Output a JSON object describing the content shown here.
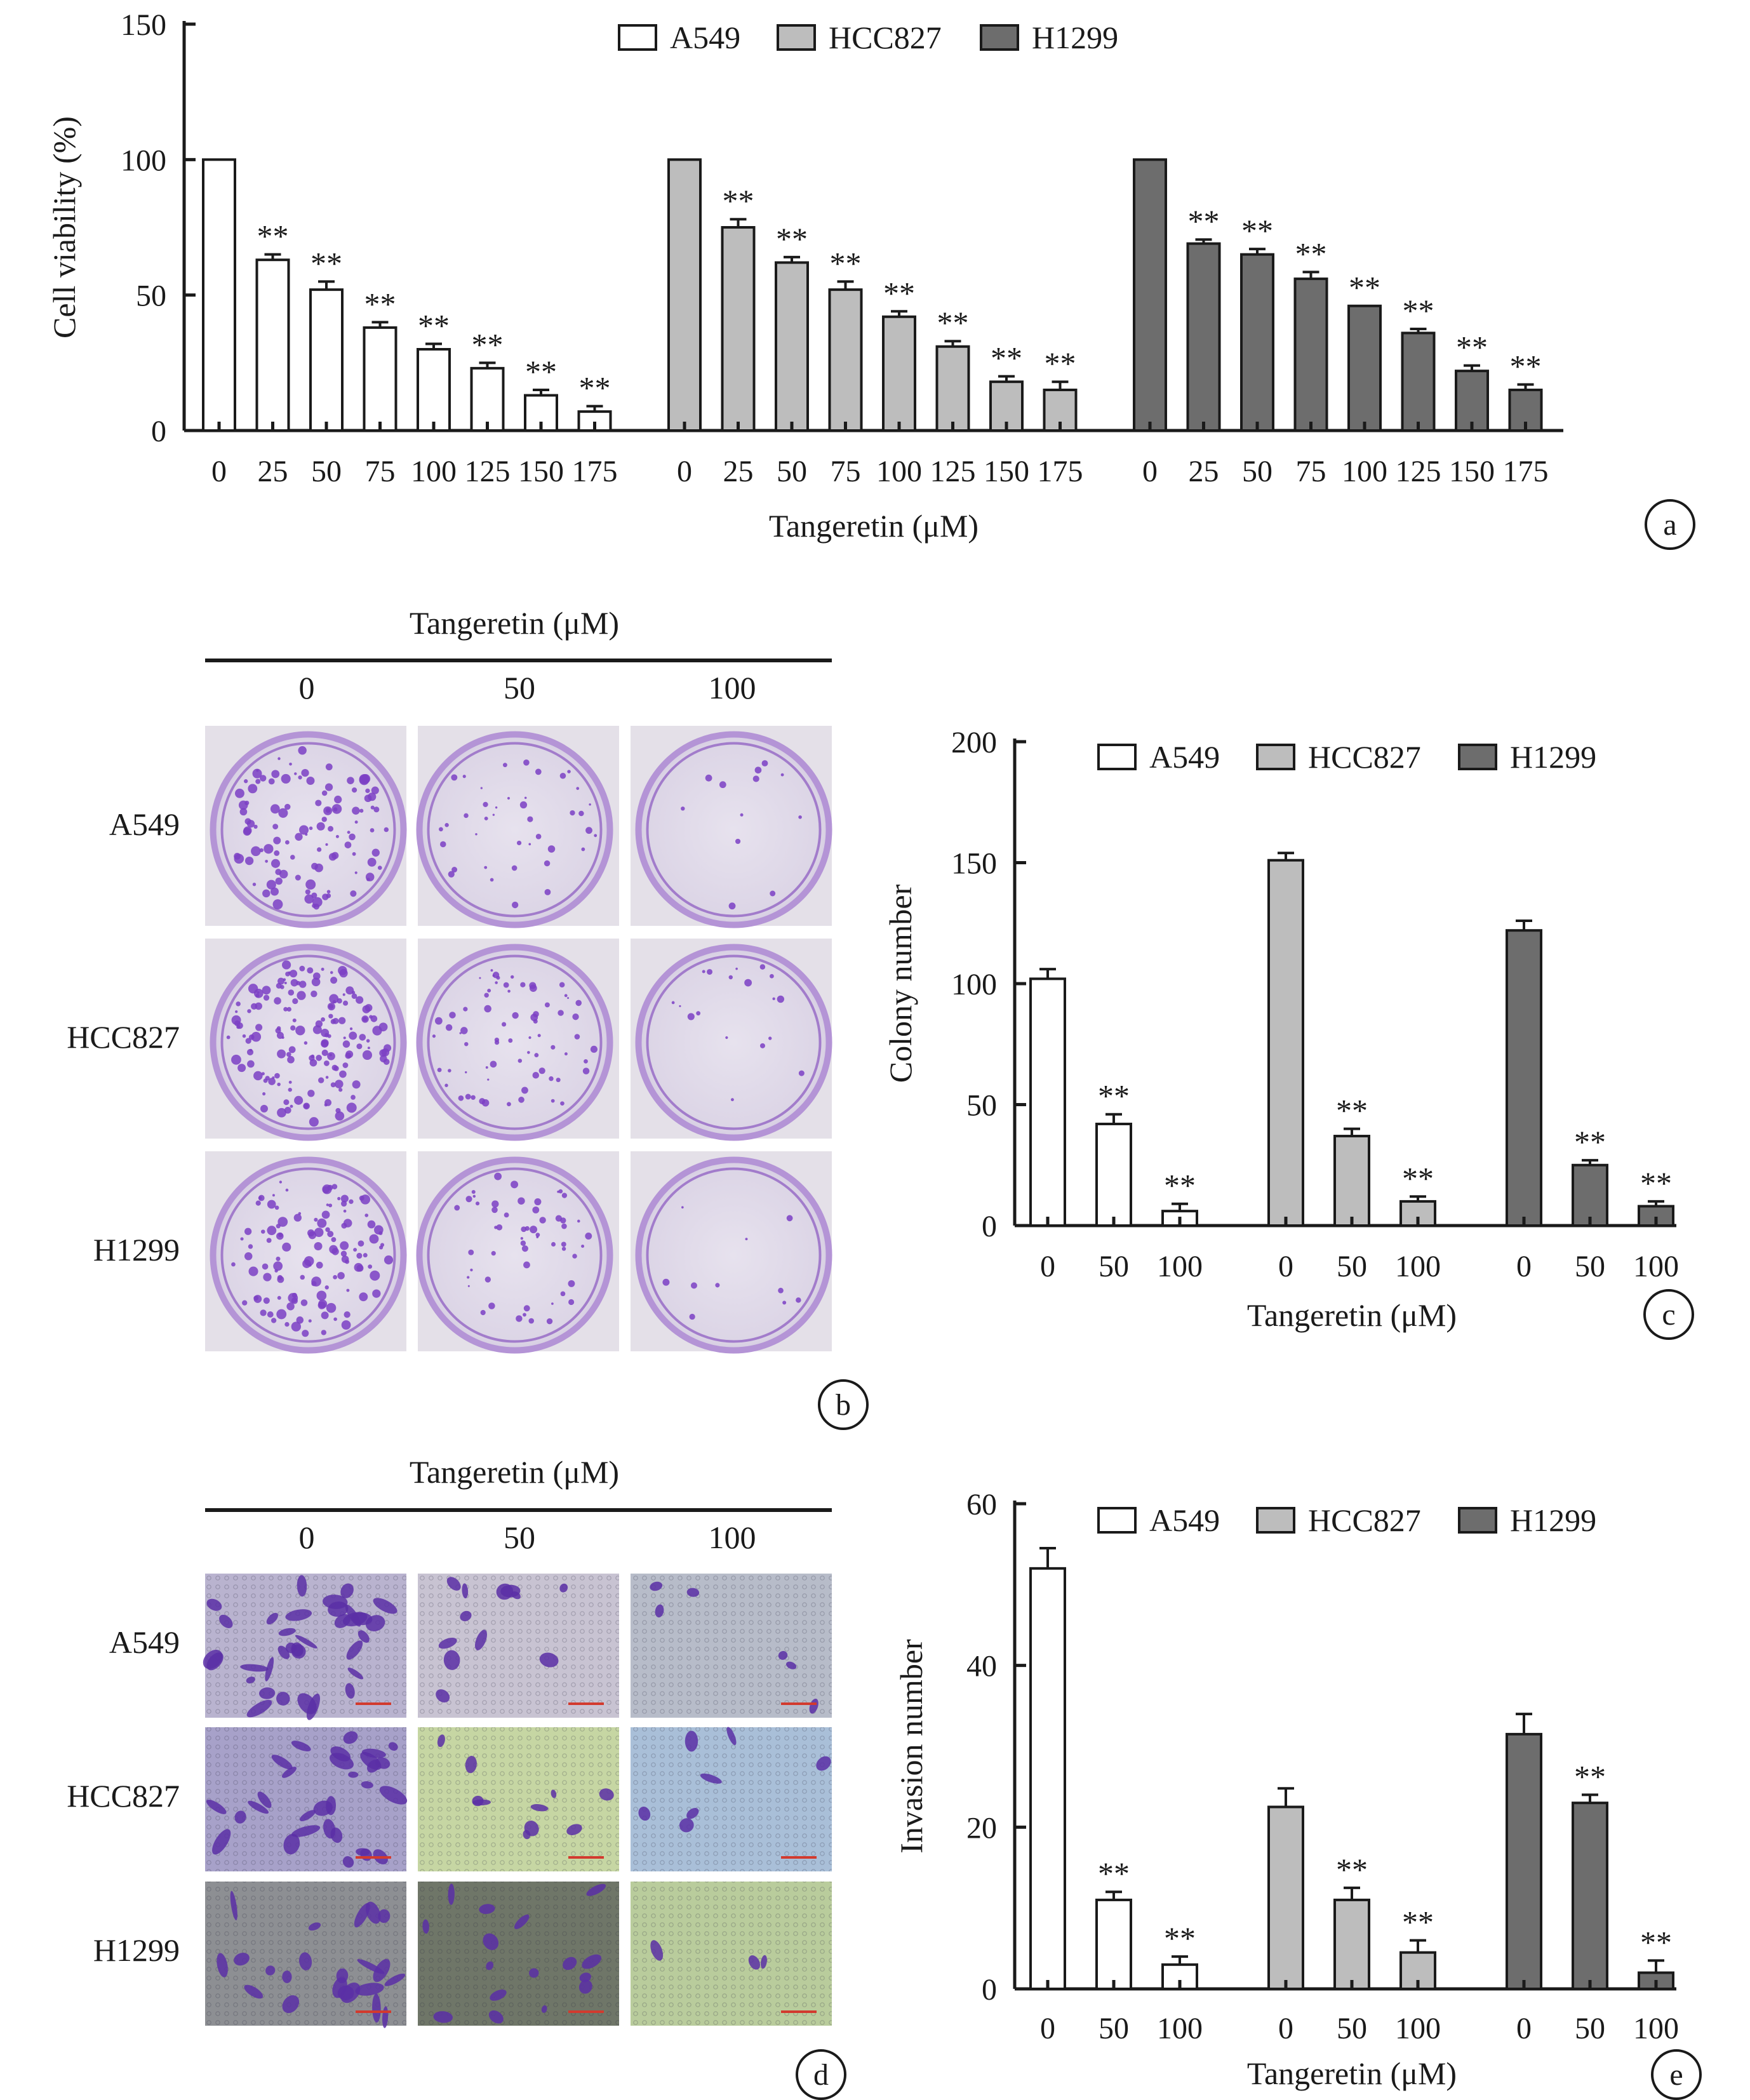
{
  "colors": {
    "A549": "#ffffff",
    "HCC827": "#bdbdbd",
    "H1299": "#6d6d6d"
  },
  "chart_data": [
    {
      "panel": "a",
      "type": "bar",
      "title": "",
      "xlabel": "Tangeretin (μM)",
      "ylabel": "Cell viability (%)",
      "ylim": [
        0,
        150
      ],
      "yticks": [
        0,
        50,
        100,
        150
      ],
      "legend": "top-center",
      "categories": [
        "0",
        "25",
        "50",
        "75",
        "100",
        "125",
        "150",
        "175"
      ],
      "significance": "**",
      "series": [
        {
          "name": "A549",
          "values": [
            100,
            63,
            52,
            38,
            30,
            23,
            13,
            7
          ],
          "errors": [
            0,
            2,
            3,
            2,
            2,
            2,
            2,
            2
          ],
          "sig": [
            false,
            true,
            true,
            true,
            true,
            true,
            true,
            true
          ]
        },
        {
          "name": "HCC827",
          "values": [
            100,
            75,
            62,
            52,
            42,
            31,
            18,
            15
          ],
          "errors": [
            0,
            3,
            2,
            3,
            2,
            2,
            2,
            3
          ],
          "sig": [
            false,
            true,
            true,
            true,
            true,
            true,
            true,
            true
          ]
        },
        {
          "name": "H1299",
          "values": [
            100,
            69,
            65,
            56,
            46,
            36,
            22,
            15
          ],
          "errors": [
            0,
            1.5,
            2,
            2.5,
            0,
            1.5,
            2,
            2
          ],
          "sig": [
            false,
            true,
            true,
            true,
            true,
            true,
            true,
            true
          ]
        }
      ]
    },
    {
      "panel": "c",
      "type": "bar",
      "title": "",
      "xlabel": "Tangeretin (μM)",
      "ylabel": "Colony number",
      "ylim": [
        0,
        200
      ],
      "yticks": [
        0,
        50,
        100,
        150,
        200
      ],
      "legend": "top-center",
      "categories": [
        "0",
        "50",
        "100"
      ],
      "significance": "**",
      "series": [
        {
          "name": "A549",
          "values": [
            102,
            42,
            6
          ],
          "errors": [
            4,
            4,
            3
          ],
          "sig": [
            false,
            true,
            true
          ]
        },
        {
          "name": "HCC827",
          "values": [
            151,
            37,
            10
          ],
          "errors": [
            3,
            3,
            2
          ],
          "sig": [
            false,
            true,
            true
          ]
        },
        {
          "name": "H1299",
          "values": [
            122,
            25,
            8
          ],
          "errors": [
            4,
            2,
            2
          ],
          "sig": [
            false,
            true,
            true
          ]
        }
      ]
    },
    {
      "panel": "e",
      "type": "bar",
      "title": "",
      "xlabel": "Tangeretin (μM)",
      "ylabel": "Invasion number",
      "ylim": [
        0,
        60
      ],
      "yticks": [
        0,
        20,
        40,
        60
      ],
      "legend": "top-center",
      "categories": [
        "0",
        "50",
        "100"
      ],
      "significance": "**",
      "series": [
        {
          "name": "A549",
          "values": [
            52,
            11,
            3
          ],
          "errors": [
            2.5,
            1,
            1
          ],
          "sig": [
            false,
            true,
            true
          ]
        },
        {
          "name": "HCC827",
          "values": [
            22.5,
            11,
            4.5
          ],
          "errors": [
            2.3,
            1.5,
            1.5
          ],
          "sig": [
            false,
            true,
            true
          ]
        },
        {
          "name": "H1299",
          "values": [
            31.5,
            23,
            2
          ],
          "errors": [
            2.5,
            1,
            1.5
          ],
          "sig": [
            false,
            true,
            true
          ]
        }
      ]
    }
  ],
  "panels": {
    "a": {
      "letter": "a"
    },
    "b": {
      "letter": "b",
      "header": "Tangeretin (μM)",
      "columns": [
        "0",
        "50",
        "100"
      ],
      "rows": [
        "A549",
        "HCC827",
        "H1299"
      ]
    },
    "c": {
      "letter": "c"
    },
    "d": {
      "letter": "d",
      "header": "Tangeretin (μM)",
      "columns": [
        "0",
        "50",
        "100"
      ],
      "rows": [
        "A549",
        "HCC827",
        "H1299"
      ]
    },
    "e": {
      "letter": "e"
    }
  }
}
